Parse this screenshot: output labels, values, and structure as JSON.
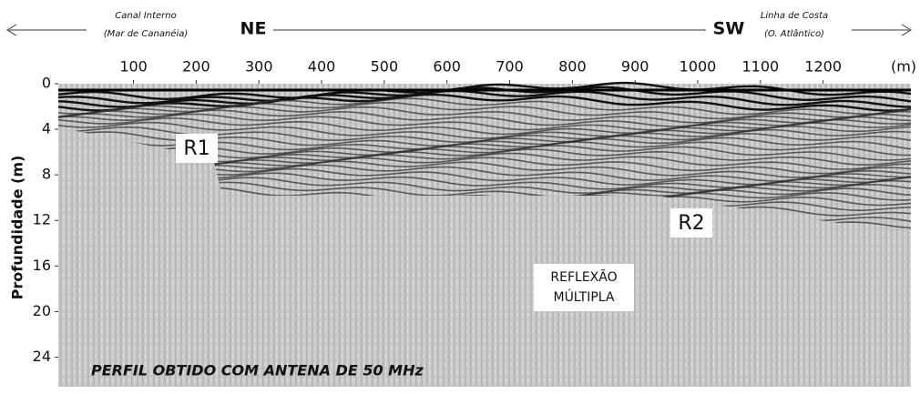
{
  "chart_data": {
    "type": "radargram",
    "title": "PERFIL OBTIDO COM ANTENA DE 50 MHz",
    "y_label": "Profundidade (m)",
    "x_unit": "(m)",
    "xlim": [
      -20,
      1340
    ],
    "ylim": [
      0,
      26.6
    ],
    "xticks": [
      100,
      200,
      300,
      400,
      500,
      600,
      700,
      800,
      900,
      1000,
      1100,
      1200
    ],
    "yticks": [
      0,
      4,
      8,
      12,
      16,
      20,
      24
    ],
    "left_place": [
      "Canal Interno",
      "(Mar de Cananéia)"
    ],
    "left_direction": "NE",
    "right_direction": "SW",
    "right_place": [
      "Linha de Costa",
      "(O. Atlântico)"
    ],
    "annotations": [
      "R1",
      "R2",
      "REFLEXÃO",
      "MÚLTIPLA"
    ]
  }
}
